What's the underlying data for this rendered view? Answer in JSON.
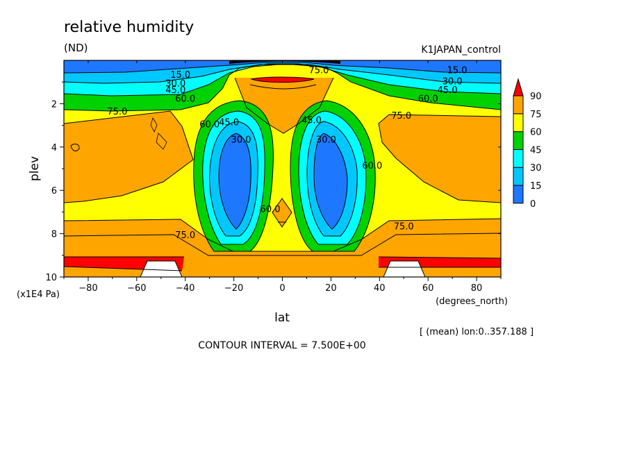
{
  "chart_data": {
    "type": "contour",
    "title": "relative humidity",
    "units": "(ND)",
    "run_label": "K1JAPAN_control",
    "xlabel": "lat",
    "x_units": "(degrees_north)",
    "ylabel": "plev",
    "y_units": "(x1E4 Pa)",
    "xlim": [
      -90,
      90
    ],
    "ylim": [
      10,
      0
    ],
    "x_ticks": [
      "-80",
      "-60",
      "-40",
      "-20",
      "0",
      "20",
      "40",
      "60",
      "80"
    ],
    "y_ticks": [
      "2",
      "4",
      "6",
      "8",
      "10"
    ],
    "y_tick_values": [
      2,
      4,
      6,
      8,
      10
    ],
    "mean_note": "[ (mean) lon:0..357.188 ]",
    "contour_interval": "CONTOUR INTERVAL = 7.500E+00",
    "colorbar": {
      "levels": [
        "0",
        "15",
        "30",
        "45",
        "60",
        "75",
        "90"
      ],
      "colors": [
        "#1e78ff",
        "#00c8ff",
        "#00ffff",
        "#00d200",
        "#ffff00",
        "#ffa500",
        "#ff0000"
      ]
    },
    "contour_labels": [
      {
        "text": "75.0",
        "lat": -68,
        "plev": 2.5
      },
      {
        "text": "60.0",
        "lat": -40,
        "plev": 1.9
      },
      {
        "text": "45.0",
        "lat": -44,
        "plev": 1.5
      },
      {
        "text": "30.0",
        "lat": -44,
        "plev": 1.2
      },
      {
        "text": "15.0",
        "lat": -42,
        "plev": 0.8
      },
      {
        "text": "60.0",
        "lat": -30,
        "plev": 3.1
      },
      {
        "text": "45.0",
        "lat": -22,
        "plev": 3.0
      },
      {
        "text": "30.0",
        "lat": -17,
        "plev": 3.8
      },
      {
        "text": "75.0",
        "lat": 15,
        "plev": 0.6
      },
      {
        "text": "45.0",
        "lat": 12,
        "plev": 2.9
      },
      {
        "text": "30.0",
        "lat": 18,
        "plev": 3.8
      },
      {
        "text": "60.0",
        "lat": 37,
        "plev": 5.0
      },
      {
        "text": "60.0",
        "lat": -5,
        "plev": 7.0
      },
      {
        "text": "75.0",
        "lat": 50,
        "plev": 7.8
      },
      {
        "text": "75.0",
        "lat": -40,
        "plev": 8.2
      },
      {
        "text": "75.0",
        "lat": 49,
        "plev": 2.7
      },
      {
        "text": "60.0",
        "lat": 60,
        "plev": 1.9
      },
      {
        "text": "45.0",
        "lat": 68,
        "plev": 1.5
      },
      {
        "text": "30.0",
        "lat": 70,
        "plev": 1.1
      },
      {
        "text": "15.0",
        "lat": 72,
        "plev": 0.6
      }
    ]
  }
}
